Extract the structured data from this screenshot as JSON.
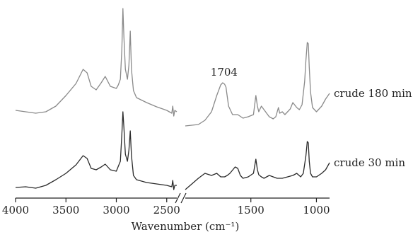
{
  "chart_data": {
    "type": "line",
    "title": "",
    "xlabel": "Wavenumber (cm⁻¹)",
    "ylabel": "",
    "x_reversed": true,
    "axis_break": true,
    "x_segments": [
      {
        "xlim": [
          4000,
          2400
        ]
      },
      {
        "xlim": [
          2000,
          900
        ]
      }
    ],
    "xticks": [
      {
        "value": 4000,
        "label": "4000"
      },
      {
        "value": 3500,
        "label": "3500"
      },
      {
        "value": 3000,
        "label": "3000"
      },
      {
        "value": 2500,
        "label": "2500"
      },
      {
        "value": 1500,
        "label": "1500"
      },
      {
        "value": 1000,
        "label": "1000"
      }
    ],
    "annotations": [
      {
        "text": "1704",
        "x": 1704,
        "series": "crude 180 min"
      }
    ],
    "series": [
      {
        "name": "crude 180 min",
        "color": "#8a8a8a",
        "points": [
          [
            4000,
            156
          ],
          [
            3900,
            158
          ],
          [
            3800,
            160
          ],
          [
            3700,
            158
          ],
          [
            3600,
            150
          ],
          [
            3500,
            135
          ],
          [
            3400,
            118
          ],
          [
            3330,
            98
          ],
          [
            3290,
            103
          ],
          [
            3250,
            122
          ],
          [
            3200,
            127
          ],
          [
            3150,
            117
          ],
          [
            3110,
            108
          ],
          [
            3060,
            122
          ],
          [
            3000,
            125
          ],
          [
            2980,
            120
          ],
          [
            2960,
            112
          ],
          [
            2945,
            70
          ],
          [
            2935,
            12
          ],
          [
            2925,
            52
          ],
          [
            2910,
            98
          ],
          [
            2890,
            112
          ],
          [
            2875,
            92
          ],
          [
            2862,
            44
          ],
          [
            2850,
            98
          ],
          [
            2830,
            128
          ],
          [
            2800,
            138
          ],
          [
            2700,
            145
          ],
          [
            2600,
            151
          ],
          [
            2500,
            156
          ],
          [
            2450,
            160
          ],
          [
            2440,
            150
          ],
          [
            2430,
            164
          ],
          [
            2420,
            156
          ],
          [
            2400,
            158
          ],
          [
            2000,
            178
          ],
          [
            1900,
            176
          ],
          [
            1850,
            170
          ],
          [
            1800,
            158
          ],
          [
            1760,
            135
          ],
          [
            1730,
            120
          ],
          [
            1715,
            117
          ],
          [
            1700,
            119
          ],
          [
            1690,
            123
          ],
          [
            1670,
            150
          ],
          [
            1640,
            162
          ],
          [
            1600,
            162
          ],
          [
            1560,
            167
          ],
          [
            1520,
            165
          ],
          [
            1480,
            162
          ],
          [
            1462,
            135
          ],
          [
            1450,
            150
          ],
          [
            1440,
            158
          ],
          [
            1420,
            150
          ],
          [
            1400,
            155
          ],
          [
            1380,
            160
          ],
          [
            1360,
            165
          ],
          [
            1330,
            168
          ],
          [
            1310,
            165
          ],
          [
            1290,
            152
          ],
          [
            1280,
            160
          ],
          [
            1260,
            158
          ],
          [
            1240,
            162
          ],
          [
            1200,
            154
          ],
          [
            1180,
            145
          ],
          [
            1150,
            152
          ],
          [
            1130,
            155
          ],
          [
            1110,
            148
          ],
          [
            1090,
            115
          ],
          [
            1080,
            85
          ],
          [
            1070,
            60
          ],
          [
            1062,
            62
          ],
          [
            1055,
            95
          ],
          [
            1045,
            130
          ],
          [
            1030,
            152
          ],
          [
            1000,
            158
          ],
          [
            960,
            150
          ],
          [
            930,
            140
          ],
          [
            900,
            132
          ]
        ]
      },
      {
        "name": "crude 30 min",
        "color": "#2a2a2a",
        "points": [
          [
            4000,
            265
          ],
          [
            3900,
            264
          ],
          [
            3800,
            266
          ],
          [
            3700,
            262
          ],
          [
            3600,
            254
          ],
          [
            3500,
            245
          ],
          [
            3400,
            233
          ],
          [
            3330,
            220
          ],
          [
            3290,
            224
          ],
          [
            3250,
            238
          ],
          [
            3200,
            240
          ],
          [
            3150,
            236
          ],
          [
            3110,
            232
          ],
          [
            3060,
            240
          ],
          [
            3000,
            242
          ],
          [
            2980,
            235
          ],
          [
            2960,
            228
          ],
          [
            2945,
            190
          ],
          [
            2935,
            158
          ],
          [
            2925,
            180
          ],
          [
            2910,
            218
          ],
          [
            2890,
            228
          ],
          [
            2875,
            212
          ],
          [
            2862,
            185
          ],
          [
            2850,
            220
          ],
          [
            2830,
            248
          ],
          [
            2800,
            254
          ],
          [
            2700,
            258
          ],
          [
            2600,
            260
          ],
          [
            2500,
            262
          ],
          [
            2450,
            264
          ],
          [
            2440,
            255
          ],
          [
            2430,
            268
          ],
          [
            2420,
            262
          ],
          [
            2400,
            262
          ],
          [
            2000,
            268
          ],
          [
            1950,
            260
          ],
          [
            1900,
            252
          ],
          [
            1850,
            245
          ],
          [
            1800,
            248
          ],
          [
            1760,
            245
          ],
          [
            1730,
            250
          ],
          [
            1700,
            250
          ],
          [
            1680,
            248
          ],
          [
            1660,
            245
          ],
          [
            1620,
            236
          ],
          [
            1600,
            238
          ],
          [
            1580,
            248
          ],
          [
            1560,
            252
          ],
          [
            1520,
            250
          ],
          [
            1480,
            245
          ],
          [
            1462,
            225
          ],
          [
            1450,
            240
          ],
          [
            1440,
            247
          ],
          [
            1420,
            250
          ],
          [
            1400,
            252
          ],
          [
            1380,
            250
          ],
          [
            1360,
            248
          ],
          [
            1330,
            250
          ],
          [
            1300,
            252
          ],
          [
            1260,
            252
          ],
          [
            1220,
            250
          ],
          [
            1180,
            248
          ],
          [
            1150,
            245
          ],
          [
            1120,
            250
          ],
          [
            1100,
            245
          ],
          [
            1080,
            220
          ],
          [
            1070,
            200
          ],
          [
            1062,
            202
          ],
          [
            1055,
            228
          ],
          [
            1045,
            245
          ],
          [
            1030,
            250
          ],
          [
            1000,
            250
          ],
          [
            960,
            245
          ],
          [
            930,
            240
          ],
          [
            900,
            230
          ]
        ]
      }
    ]
  }
}
